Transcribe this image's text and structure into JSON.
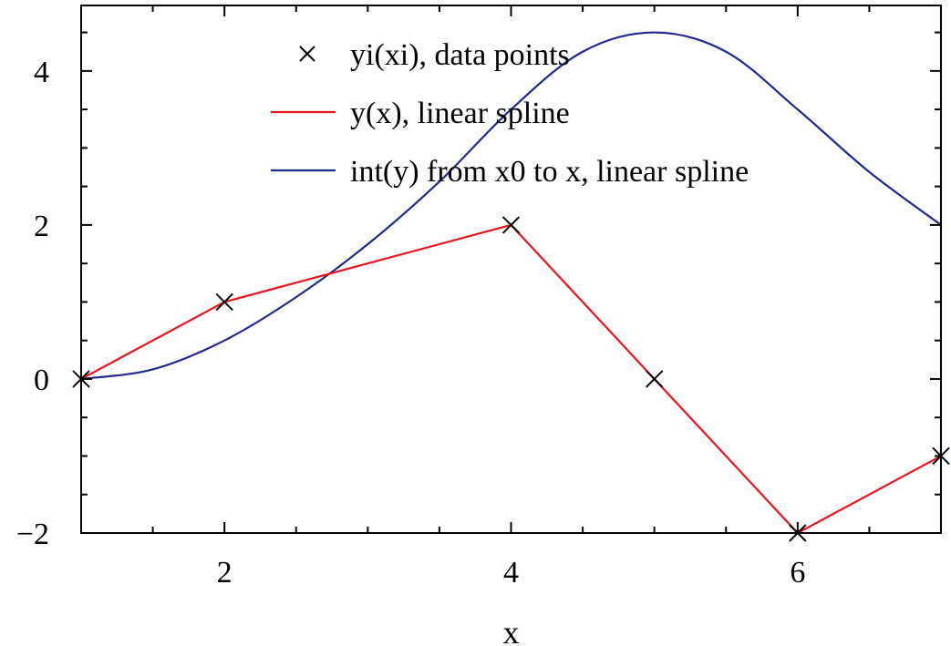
{
  "chart_data": {
    "type": "line",
    "title": "",
    "xlabel": "x",
    "ylabel": "",
    "xlim": [
      1,
      7
    ],
    "ylim": [
      -2,
      4.85
    ],
    "xticks": [
      2,
      4,
      6
    ],
    "xtick_labels": [
      "2",
      "4",
      "6"
    ],
    "yticks": [
      -2,
      0,
      2,
      4
    ],
    "ytick_labels": [
      "−2",
      "0",
      "2",
      "4"
    ],
    "xminor_step": 0.5,
    "yminor_step": 0.5,
    "grid": false,
    "legend_position": "top-center",
    "series": [
      {
        "name": "yi(xi), data points",
        "kind": "markers",
        "marker": "x",
        "color": "#000000",
        "x": [
          1,
          2,
          4,
          5,
          6,
          7
        ],
        "y": [
          0,
          1,
          2,
          0,
          -2,
          -1
        ]
      },
      {
        "name": "y(x), linear spline",
        "kind": "line",
        "color": "#e8141e",
        "x": [
          1,
          2,
          4,
          5,
          6,
          7
        ],
        "y": [
          0,
          1,
          2,
          0,
          -2,
          -1
        ]
      },
      {
        "name": "int(y) from x0 to x, linear spline",
        "kind": "line",
        "color": "#1f2a8c",
        "x": [
          1,
          1.5,
          2,
          2.5,
          3,
          3.5,
          4,
          4.5,
          5,
          5.5,
          6,
          6.5,
          7
        ],
        "y": [
          0,
          0.125,
          0.5,
          1.0625,
          1.75,
          2.5625,
          3.5,
          4.25,
          4.5,
          4.25,
          3.5,
          2.6875,
          2.0
        ]
      }
    ]
  }
}
